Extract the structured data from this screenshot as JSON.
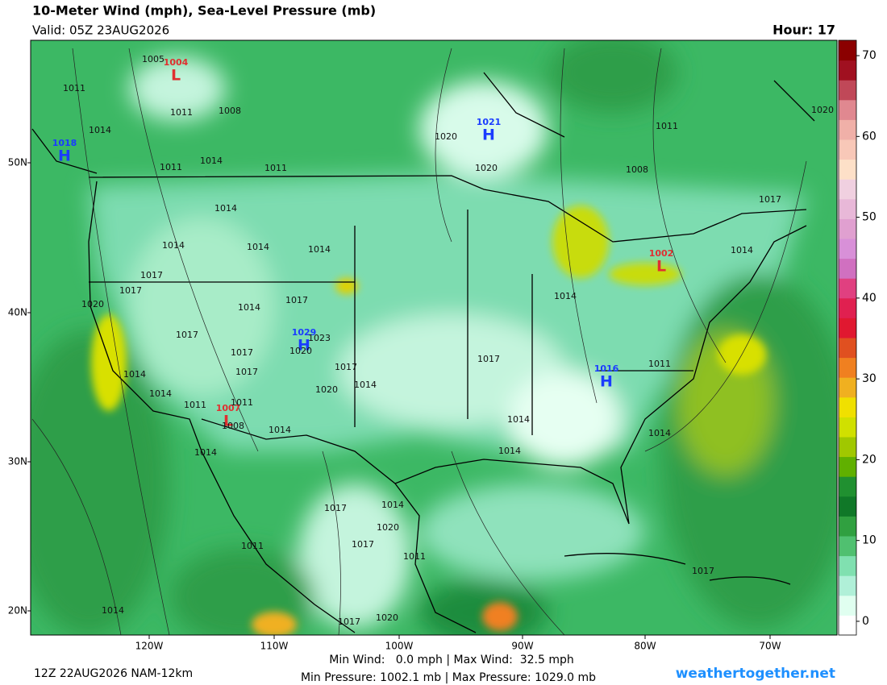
{
  "header": {
    "title": "10-Meter Wind (mph), Sea-Level Pressure (mb)",
    "valid": "Valid: 05Z 23AUG2026",
    "hour": "Hour: 17"
  },
  "map": {
    "lat_labels": [
      "50N",
      "40N",
      "30N",
      "20N"
    ],
    "lon_labels": [
      "120W",
      "110W",
      "100W",
      "90W",
      "80W",
      "70W"
    ],
    "centers": [
      {
        "type": "L",
        "value": "1004"
      },
      {
        "type": "H",
        "value": "1018"
      },
      {
        "type": "H",
        "value": "1021"
      },
      {
        "type": "L",
        "value": "1002"
      },
      {
        "type": "H",
        "value": "1029"
      },
      {
        "type": "L",
        "value": "1007"
      },
      {
        "type": "H",
        "value": "1016"
      }
    ],
    "isobar_labels": [
      "1005",
      "1011",
      "1011",
      "1008",
      "1014",
      "1011",
      "1014",
      "1011",
      "1020",
      "1020",
      "1011",
      "1008",
      "1020",
      "1017",
      "1014",
      "1014",
      "1014",
      "1014",
      "1017",
      "1017",
      "1020",
      "1014",
      "1017",
      "1017",
      "1023",
      "1020",
      "1017",
      "1017",
      "1017",
      "1014",
      "1017",
      "1014",
      "1014",
      "1011",
      "1014",
      "1014",
      "1011",
      "1011",
      "1008",
      "1014",
      "1020",
      "1014",
      "1014",
      "1014",
      "1014",
      "1017",
      "1014",
      "1020",
      "1017",
      "1011",
      "1011",
      "1014",
      "1017",
      "1020",
      "1017"
    ]
  },
  "colorbar": {
    "ticks": [
      0,
      10,
      20,
      30,
      40,
      50,
      60,
      70
    ],
    "range": [
      -1.7,
      71.9
    ],
    "colors": [
      "#ffffff",
      "#e0fff0",
      "#b0f0d8",
      "#80e0b0",
      "#50c070",
      "#30a040",
      "#107828",
      "#209030",
      "#60b000",
      "#a0c800",
      "#d0e000",
      "#f0e000",
      "#f0b020",
      "#f08020",
      "#e05020",
      "#e01830",
      "#e02050",
      "#e04080",
      "#d070c0",
      "#d890d8",
      "#e0a0d0",
      "#e8b8d8",
      "#f0d0e0",
      "#fde0c8",
      "#f8c8b8",
      "#f0b0a8",
      "#e08890",
      "#c04858",
      "#a01020",
      "#8b0000"
    ]
  },
  "footer": {
    "run": "12Z 22AUG2026 NAM-12km",
    "wind_stats": "Min Wind:   0.0 mph | Max Wind:  32.5 mph",
    "pressure_stats": "Min Pressure: 1002.1 mb | Max Pressure: 1029.0 mb",
    "site": "weathertogether.net"
  }
}
